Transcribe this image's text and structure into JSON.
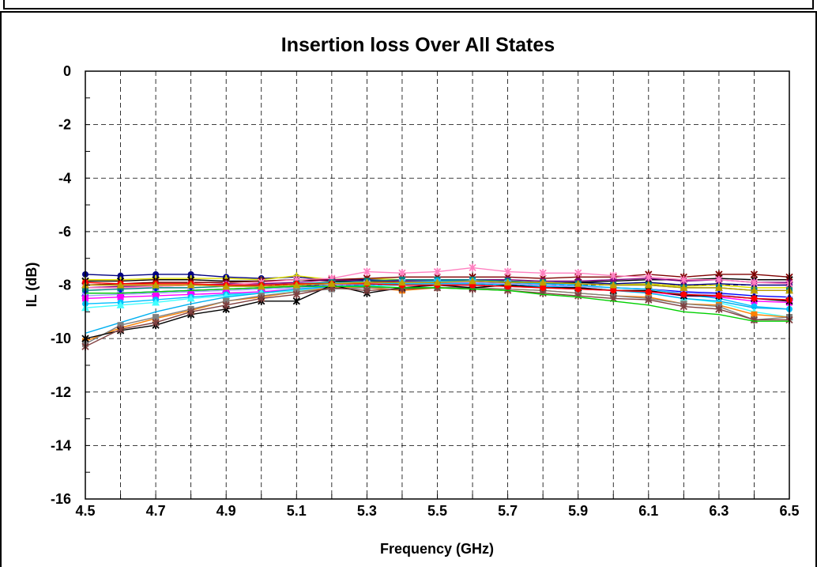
{
  "chart_data": {
    "type": "line",
    "title": "Insertion loss Over All States",
    "xlabel": "Frequency (GHz)",
    "ylabel": "IL (dB)",
    "xlim": [
      4.5,
      6.5
    ],
    "ylim": [
      -16,
      0
    ],
    "x_ticks": [
      "4.5",
      "4.7",
      "4.9",
      "5.1",
      "5.3",
      "5.5",
      "5.7",
      "5.9",
      "6.1",
      "6.3",
      "6.5"
    ],
    "y_ticks": [
      "0",
      "-2",
      "-4",
      "-6",
      "-8",
      "-10",
      "-12",
      "-14",
      "-16"
    ],
    "grid": true,
    "legend": "none",
    "x": [
      4.5,
      4.6,
      4.7,
      4.8,
      4.9,
      5.0,
      5.1,
      5.2,
      5.3,
      5.4,
      5.5,
      5.6,
      5.7,
      5.8,
      5.9,
      6.0,
      6.1,
      6.2,
      6.3,
      6.4,
      6.5
    ],
    "series": [
      {
        "color": "#000080",
        "marker": "circle",
        "values": [
          -7.6,
          -7.65,
          -7.6,
          -7.6,
          -7.7,
          -7.75,
          -7.7,
          -7.8,
          -7.8,
          -7.85,
          -7.85,
          -7.8,
          -7.85,
          -7.9,
          -7.9,
          -7.95,
          -7.9,
          -8.0,
          -7.95,
          -8.0,
          -8.0
        ]
      },
      {
        "color": "#e0e000",
        "marker": "cross",
        "values": [
          -7.8,
          -7.8,
          -7.75,
          -7.75,
          -7.75,
          -7.8,
          -7.65,
          -7.8,
          -7.75,
          -7.8,
          -7.8,
          -7.8,
          -7.85,
          -7.9,
          -7.95,
          -8.0,
          -7.95,
          -8.05,
          -8.0,
          -8.1,
          -8.1
        ]
      },
      {
        "color": "#000000",
        "marker": "xcross",
        "values": [
          -7.85,
          -7.85,
          -7.8,
          -7.8,
          -7.85,
          -7.85,
          -7.8,
          -7.85,
          -7.85,
          -7.9,
          -7.9,
          -7.9,
          -7.9,
          -7.95,
          -7.9,
          -7.85,
          -7.8,
          -7.8,
          -7.75,
          -7.8,
          -7.8
        ]
      },
      {
        "color": "#800000",
        "marker": "star",
        "values": [
          -8.0,
          -7.95,
          -7.9,
          -7.9,
          -7.9,
          -7.85,
          -7.8,
          -7.8,
          -7.75,
          -7.7,
          -7.7,
          -7.7,
          -7.7,
          -7.75,
          -7.7,
          -7.7,
          -7.6,
          -7.7,
          -7.6,
          -7.6,
          -7.7
        ]
      },
      {
        "color": "#800080",
        "marker": "circle",
        "values": [
          -8.1,
          -8.05,
          -8.05,
          -8.0,
          -7.95,
          -7.95,
          -7.9,
          -7.8,
          -7.85,
          -7.85,
          -7.85,
          -7.8,
          -7.8,
          -7.85,
          -7.85,
          -7.8,
          -7.75,
          -7.85,
          -7.8,
          -7.9,
          -7.9
        ]
      },
      {
        "color": "#ff80c0",
        "marker": "star",
        "values": [
          -8.1,
          -8.1,
          -8.05,
          -8.0,
          -8.0,
          -7.9,
          -7.8,
          -7.75,
          -7.5,
          -7.55,
          -7.5,
          -7.35,
          -7.5,
          -7.55,
          -7.55,
          -7.65,
          -7.7,
          -7.8,
          -7.8,
          -7.9,
          -7.95
        ]
      },
      {
        "color": "#008080",
        "marker": "square",
        "values": [
          -8.2,
          -8.15,
          -8.1,
          -8.1,
          -8.05,
          -8.0,
          -7.95,
          -7.9,
          -7.85,
          -7.8,
          -7.8,
          -7.8,
          -7.85,
          -7.9,
          -7.95,
          -8.0,
          -8.0,
          -8.1,
          -8.1,
          -8.2,
          -8.2
        ]
      },
      {
        "color": "#0000ff",
        "marker": "triangle",
        "values": [
          -8.3,
          -8.3,
          -8.25,
          -8.2,
          -8.15,
          -8.1,
          -8.05,
          -8.0,
          -7.95,
          -7.9,
          -7.9,
          -7.9,
          -7.95,
          -8.0,
          -8.05,
          -8.1,
          -8.15,
          -8.25,
          -8.3,
          -8.4,
          -8.45
        ]
      },
      {
        "color": "#a0a0ff",
        "marker": "xcross",
        "values": [
          -8.4,
          -8.35,
          -8.3,
          -8.25,
          -8.2,
          -8.15,
          -8.1,
          -8.0,
          -7.95,
          -7.9,
          -7.9,
          -7.9,
          -7.95,
          -8.0,
          -8.05,
          -8.1,
          -8.15,
          -8.3,
          -8.35,
          -8.5,
          -8.55
        ]
      },
      {
        "color": "#ff00ff",
        "marker": "square",
        "values": [
          -8.5,
          -8.45,
          -8.4,
          -8.35,
          -8.3,
          -8.25,
          -8.15,
          -8.1,
          -8.05,
          -8.0,
          -8.0,
          -8.0,
          -8.05,
          -8.1,
          -8.15,
          -8.2,
          -8.25,
          -8.4,
          -8.45,
          -8.6,
          -8.65
        ]
      },
      {
        "color": "#00c0ff",
        "marker": "circle",
        "values": [
          -8.7,
          -8.65,
          -8.55,
          -8.45,
          -8.35,
          -8.3,
          -8.2,
          -8.1,
          -8.0,
          -7.9,
          -7.85,
          -7.85,
          -7.9,
          -7.95,
          -8.0,
          -8.1,
          -8.15,
          -8.35,
          -8.5,
          -8.8,
          -8.9
        ]
      },
      {
        "color": "#40ffff",
        "marker": "triangle",
        "values": [
          -8.85,
          -8.75,
          -8.65,
          -8.5,
          -8.4,
          -8.3,
          -8.2,
          -8.1,
          -8.05,
          -8.0,
          -7.95,
          -7.95,
          -8.0,
          -8.05,
          -8.1,
          -8.2,
          -8.3,
          -8.5,
          -8.65,
          -9.0,
          -9.2
        ]
      },
      {
        "color": "#00b0f0",
        "marker": "none",
        "values": [
          -9.8,
          -9.4,
          -9.0,
          -8.7,
          -8.45,
          -8.3,
          -8.15,
          -8.05,
          -8.0,
          -7.95,
          -7.95,
          -7.95,
          -8.0,
          -8.05,
          -8.1,
          -8.2,
          -8.3,
          -8.5,
          -8.6,
          -8.85,
          -8.9
        ]
      },
      {
        "color": "#ff8000",
        "marker": "square",
        "values": [
          -10.1,
          -9.6,
          -9.25,
          -8.95,
          -8.6,
          -8.45,
          -8.25,
          -8.1,
          -8.1,
          -8.2,
          -8.1,
          -8.1,
          -8.15,
          -8.2,
          -8.3,
          -8.4,
          -8.45,
          -8.7,
          -8.75,
          -9.1,
          -9.2
        ]
      },
      {
        "color": "#808080",
        "marker": "square",
        "values": [
          -10.2,
          -9.5,
          -9.2,
          -8.9,
          -8.6,
          -8.4,
          -8.25,
          -8.15,
          -8.1,
          -8.1,
          -8.1,
          -8.1,
          -8.15,
          -8.2,
          -8.3,
          -8.4,
          -8.5,
          -8.7,
          -8.8,
          -9.3,
          -9.2
        ]
      },
      {
        "color": "#000000",
        "marker": "star",
        "values": [
          -10.0,
          -9.7,
          -9.5,
          -9.1,
          -8.9,
          -8.6,
          -8.6,
          -8.0,
          -8.3,
          -8.1,
          -8.0,
          -8.1,
          -8.0,
          -8.1,
          -8.1,
          -8.2,
          -8.2,
          -8.4,
          -8.4,
          -8.5,
          -8.6
        ]
      },
      {
        "color": "#804040",
        "marker": "star",
        "values": [
          -10.3,
          -9.65,
          -9.4,
          -9.0,
          -8.75,
          -8.5,
          -8.35,
          -8.1,
          -8.2,
          -8.15,
          -8.1,
          -8.15,
          -8.2,
          -8.3,
          -8.4,
          -8.5,
          -8.55,
          -8.8,
          -8.9,
          -9.3,
          -9.3
        ]
      },
      {
        "color": "#00d000",
        "marker": "none",
        "values": [
          -8.3,
          -8.3,
          -8.25,
          -8.2,
          -8.15,
          -8.1,
          -8.05,
          -8.05,
          -8.05,
          -8.1,
          -8.1,
          -8.15,
          -8.2,
          -8.35,
          -8.45,
          -8.6,
          -8.75,
          -9.0,
          -9.1,
          -9.35,
          -9.35
        ]
      },
      {
        "color": "#ff0000",
        "marker": "circle",
        "values": [
          -7.9,
          -7.95,
          -7.95,
          -7.95,
          -8.0,
          -8.0,
          -7.95,
          -7.95,
          -7.95,
          -8.0,
          -8.0,
          -8.0,
          -8.05,
          -8.1,
          -8.15,
          -8.2,
          -8.25,
          -8.35,
          -8.4,
          -8.5,
          -8.55
        ]
      },
      {
        "color": "#c0a000",
        "marker": "triangle",
        "values": [
          -8.0,
          -8.0,
          -8.0,
          -8.0,
          -8.05,
          -8.05,
          -8.0,
          -7.95,
          -7.9,
          -7.9,
          -7.9,
          -7.85,
          -7.9,
          -7.9,
          -7.95,
          -8.0,
          -8.0,
          -8.1,
          -8.1,
          -8.2,
          -8.2
        ]
      }
    ]
  }
}
